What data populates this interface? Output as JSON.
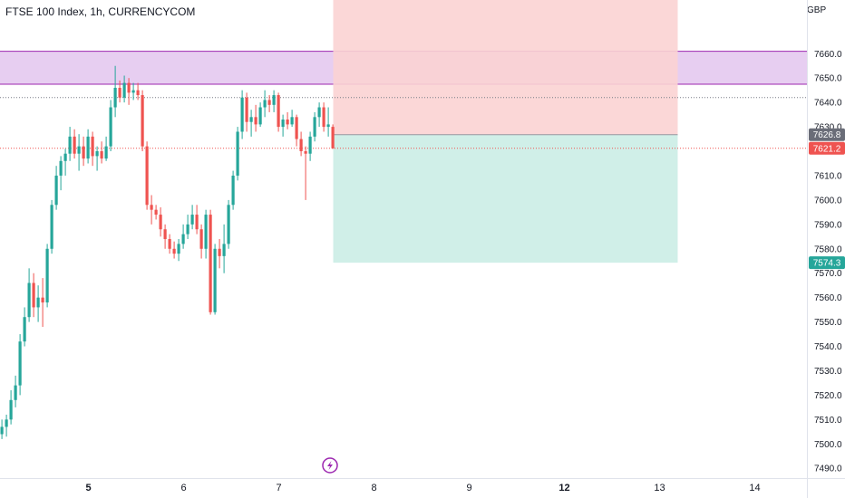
{
  "header": {
    "title": "FTSE 100 Index, 1h, CURRENCYCOM",
    "currency": "GBP"
  },
  "icons": {
    "event_icon": "lightning-icon"
  },
  "colors": {
    "up": "#26a69a",
    "down": "#ef5350",
    "zone_fill": "#e3c6ee",
    "zone_border": "#9c27b0",
    "stop_fill": "#fbd3d3",
    "target_fill": "#cdeee7",
    "last_price_line": "#ef5350",
    "entry_tag": "#6a6d78",
    "target_tag": "#26a69a"
  },
  "chart_data": {
    "type": "candlestick",
    "y_axis": {
      "range": [
        7486,
        7682
      ],
      "ticks": [
        "7660.0",
        "7650.0",
        "7640.0",
        "7630.0",
        "7610.0",
        "7600.0",
        "7590.0",
        "7580.0",
        "7570.0",
        "7560.0",
        "7550.0",
        "7540.0",
        "7530.0",
        "7520.0",
        "7510.0",
        "7500.0",
        "7490.0"
      ],
      "tick_values": [
        7660,
        7650,
        7640,
        7630,
        7610,
        7600,
        7590,
        7580,
        7570,
        7560,
        7550,
        7540,
        7530,
        7520,
        7510,
        7500,
        7490
      ]
    },
    "x_axis": {
      "labels": [
        "5",
        "6",
        "7",
        "8",
        "9",
        "12",
        "13",
        "14"
      ],
      "bold": [
        true,
        false,
        false,
        false,
        false,
        true,
        false,
        false
      ],
      "positions_index": [
        19.5,
        40.5,
        61.5,
        82.5,
        103.5,
        124.5,
        145.5,
        166.5
      ]
    },
    "price_tags": [
      {
        "label": "7626.8",
        "value": 7626.8,
        "role": "entry"
      },
      {
        "label": "7621.2",
        "value": 7621.2,
        "role": "last"
      },
      {
        "label": "7574.3",
        "value": 7574.3,
        "role": "target"
      }
    ],
    "resistance_zone": {
      "high": 7661,
      "low": 7647.5
    },
    "reference_line": 7642,
    "position": {
      "type": "short",
      "entry": 7626.8,
      "stop": 7682,
      "target": 7574.3,
      "start_index": 73.5,
      "end_index": 149.5
    },
    "candles": [
      {
        "o": 7504,
        "h": 7510,
        "l": 7502,
        "c": 7507
      },
      {
        "o": 7507,
        "h": 7512,
        "l": 7503,
        "c": 7510
      },
      {
        "o": 7510,
        "h": 7522,
        "l": 7508,
        "c": 7518
      },
      {
        "o": 7518,
        "h": 7528,
        "l": 7515,
        "c": 7524
      },
      {
        "o": 7524,
        "h": 7545,
        "l": 7520,
        "c": 7542
      },
      {
        "o": 7542,
        "h": 7556,
        "l": 7540,
        "c": 7552
      },
      {
        "o": 7552,
        "h": 7572,
        "l": 7550,
        "c": 7566
      },
      {
        "o": 7566,
        "h": 7570,
        "l": 7552,
        "c": 7556
      },
      {
        "o": 7556,
        "h": 7565,
        "l": 7550,
        "c": 7560
      },
      {
        "o": 7560,
        "h": 7568,
        "l": 7548,
        "c": 7558
      },
      {
        "o": 7558,
        "h": 7582,
        "l": 7556,
        "c": 7580
      },
      {
        "o": 7580,
        "h": 7600,
        "l": 7578,
        "c": 7598
      },
      {
        "o": 7598,
        "h": 7614,
        "l": 7596,
        "c": 7610
      },
      {
        "o": 7610,
        "h": 7618,
        "l": 7604,
        "c": 7616
      },
      {
        "o": 7616,
        "h": 7621,
        "l": 7610,
        "c": 7619
      },
      {
        "o": 7619,
        "h": 7630,
        "l": 7616,
        "c": 7626
      },
      {
        "o": 7626,
        "h": 7629,
        "l": 7617,
        "c": 7619
      },
      {
        "o": 7619,
        "h": 7627,
        "l": 7612,
        "c": 7622
      },
      {
        "o": 7622,
        "h": 7626,
        "l": 7614,
        "c": 7617
      },
      {
        "o": 7617,
        "h": 7629,
        "l": 7615,
        "c": 7626
      },
      {
        "o": 7626,
        "h": 7628,
        "l": 7614,
        "c": 7618
      },
      {
        "o": 7618,
        "h": 7622,
        "l": 7612,
        "c": 7620
      },
      {
        "o": 7620,
        "h": 7624,
        "l": 7615,
        "c": 7617
      },
      {
        "o": 7617,
        "h": 7626,
        "l": 7616,
        "c": 7622
      },
      {
        "o": 7622,
        "h": 7641,
        "l": 7620,
        "c": 7638
      },
      {
        "o": 7638,
        "h": 7655,
        "l": 7634,
        "c": 7646
      },
      {
        "o": 7646,
        "h": 7649,
        "l": 7640,
        "c": 7642
      },
      {
        "o": 7642,
        "h": 7651,
        "l": 7640,
        "c": 7648
      },
      {
        "o": 7648,
        "h": 7650,
        "l": 7639,
        "c": 7644
      },
      {
        "o": 7644,
        "h": 7648,
        "l": 7641,
        "c": 7645
      },
      {
        "o": 7645,
        "h": 7648,
        "l": 7641,
        "c": 7643
      },
      {
        "o": 7643,
        "h": 7645,
        "l": 7620,
        "c": 7622
      },
      {
        "o": 7622,
        "h": 7624,
        "l": 7596,
        "c": 7598
      },
      {
        "o": 7598,
        "h": 7602,
        "l": 7590,
        "c": 7596
      },
      {
        "o": 7596,
        "h": 7598,
        "l": 7592,
        "c": 7594
      },
      {
        "o": 7594,
        "h": 7597,
        "l": 7585,
        "c": 7588
      },
      {
        "o": 7588,
        "h": 7590,
        "l": 7580,
        "c": 7584
      },
      {
        "o": 7584,
        "h": 7586,
        "l": 7578,
        "c": 7580
      },
      {
        "o": 7580,
        "h": 7583,
        "l": 7576,
        "c": 7578
      },
      {
        "o": 7578,
        "h": 7584,
        "l": 7575,
        "c": 7582
      },
      {
        "o": 7582,
        "h": 7590,
        "l": 7580,
        "c": 7586
      },
      {
        "o": 7586,
        "h": 7594,
        "l": 7584,
        "c": 7590
      },
      {
        "o": 7590,
        "h": 7598,
        "l": 7588,
        "c": 7594
      },
      {
        "o": 7594,
        "h": 7598,
        "l": 7586,
        "c": 7588
      },
      {
        "o": 7588,
        "h": 7590,
        "l": 7576,
        "c": 7580
      },
      {
        "o": 7580,
        "h": 7596,
        "l": 7576,
        "c": 7594
      },
      {
        "o": 7594,
        "h": 7596,
        "l": 7553,
        "c": 7554
      },
      {
        "o": 7554,
        "h": 7582,
        "l": 7553,
        "c": 7580
      },
      {
        "o": 7580,
        "h": 7584,
        "l": 7572,
        "c": 7577
      },
      {
        "o": 7577,
        "h": 7590,
        "l": 7570,
        "c": 7582
      },
      {
        "o": 7582,
        "h": 7600,
        "l": 7580,
        "c": 7598
      },
      {
        "o": 7598,
        "h": 7612,
        "l": 7596,
        "c": 7610
      },
      {
        "o": 7610,
        "h": 7630,
        "l": 7608,
        "c": 7628
      },
      {
        "o": 7628,
        "h": 7645,
        "l": 7625,
        "c": 7642
      },
      {
        "o": 7642,
        "h": 7644,
        "l": 7628,
        "c": 7632
      },
      {
        "o": 7632,
        "h": 7637,
        "l": 7626,
        "c": 7634
      },
      {
        "o": 7634,
        "h": 7639,
        "l": 7628,
        "c": 7631
      },
      {
        "o": 7631,
        "h": 7640,
        "l": 7630,
        "c": 7638
      },
      {
        "o": 7638,
        "h": 7645,
        "l": 7634,
        "c": 7641
      },
      {
        "o": 7641,
        "h": 7643,
        "l": 7636,
        "c": 7639
      },
      {
        "o": 7639,
        "h": 7645,
        "l": 7636,
        "c": 7643
      },
      {
        "o": 7643,
        "h": 7644,
        "l": 7628,
        "c": 7630
      },
      {
        "o": 7630,
        "h": 7635,
        "l": 7626,
        "c": 7633
      },
      {
        "o": 7633,
        "h": 7636,
        "l": 7629,
        "c": 7631
      },
      {
        "o": 7631,
        "h": 7637,
        "l": 7630,
        "c": 7634
      },
      {
        "o": 7634,
        "h": 7635,
        "l": 7622,
        "c": 7625
      },
      {
        "o": 7625,
        "h": 7628,
        "l": 7618,
        "c": 7620
      },
      {
        "o": 7620,
        "h": 7622,
        "l": 7600,
        "c": 7619
      },
      {
        "o": 7619,
        "h": 7628,
        "l": 7616,
        "c": 7626
      },
      {
        "o": 7626,
        "h": 7636,
        "l": 7624,
        "c": 7634
      },
      {
        "o": 7634,
        "h": 7640,
        "l": 7630,
        "c": 7638
      },
      {
        "o": 7638,
        "h": 7640,
        "l": 7628,
        "c": 7630
      },
      {
        "o": 7630,
        "h": 7638,
        "l": 7626,
        "c": 7631
      },
      {
        "o": 7630,
        "h": 7631,
        "l": 7621,
        "c": 7621.2
      }
    ]
  }
}
